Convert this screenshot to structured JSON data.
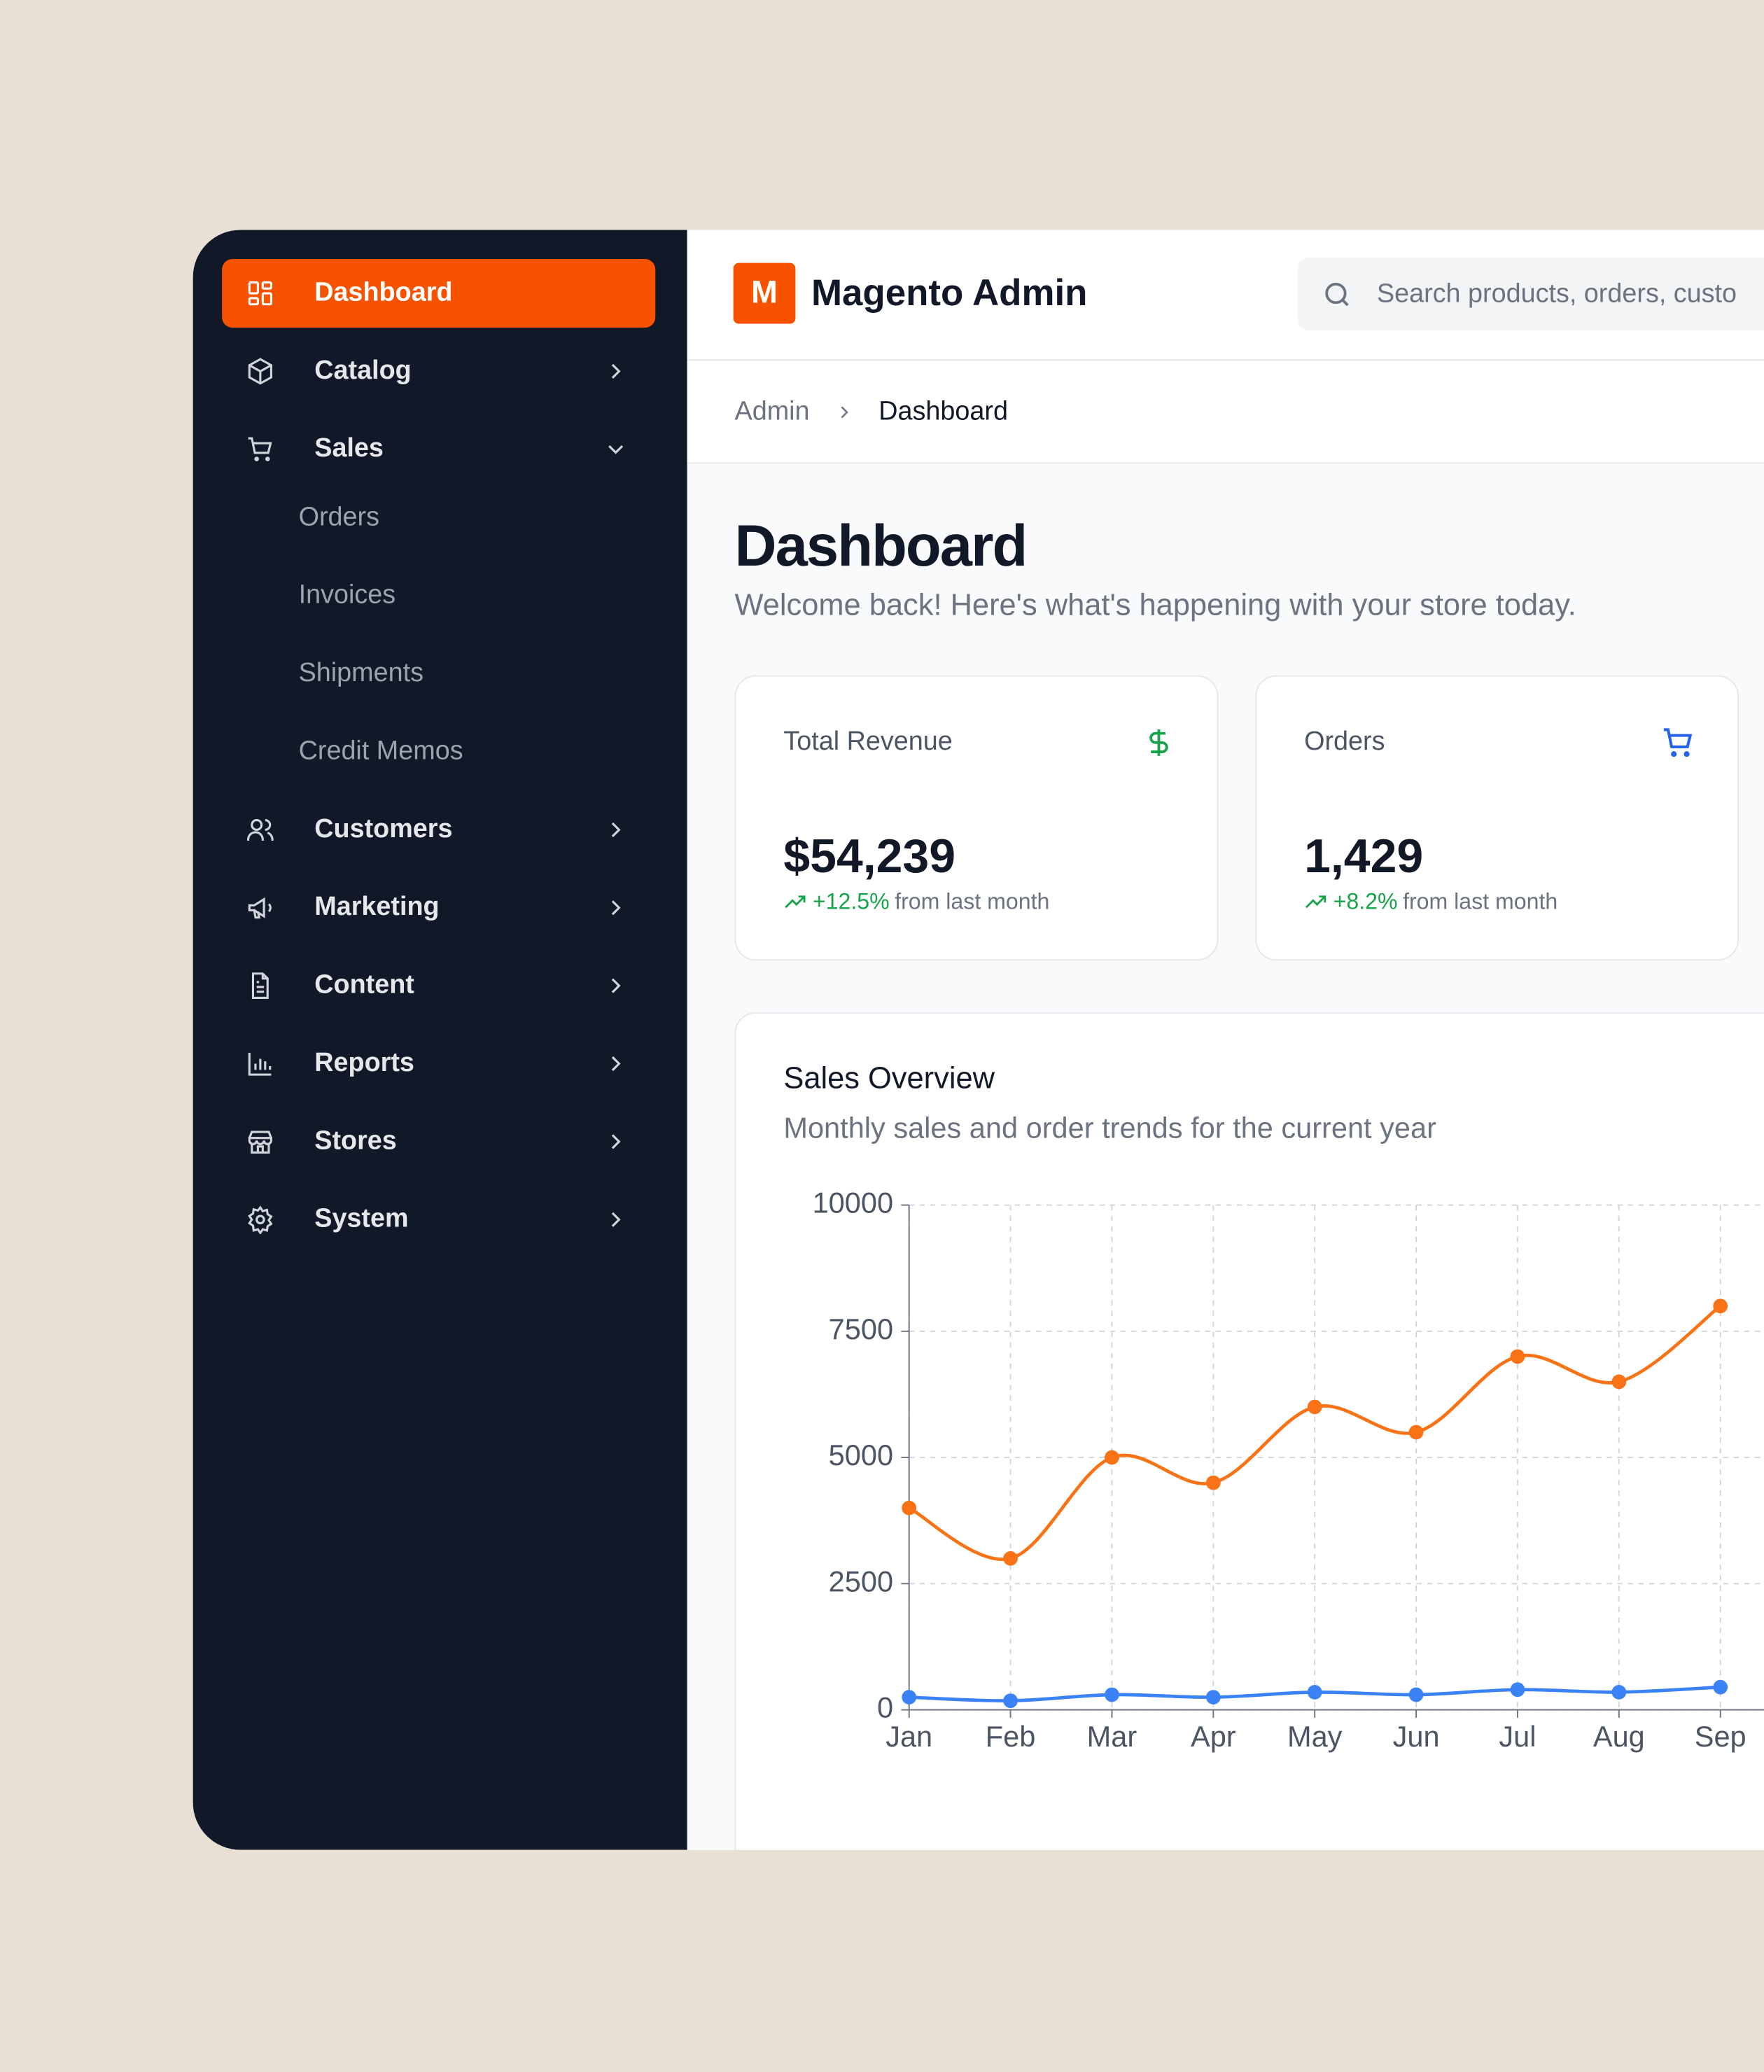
{
  "header": {
    "logo": "M",
    "title": "Magento Admin",
    "search_placeholder": "Search products, orders, custo"
  },
  "sidebar": {
    "items": [
      {
        "label": "Dashboard"
      },
      {
        "label": "Catalog"
      },
      {
        "label": "Sales",
        "children": [
          "Orders",
          "Invoices",
          "Shipments",
          "Credit Memos"
        ]
      },
      {
        "label": "Customers"
      },
      {
        "label": "Marketing"
      },
      {
        "label": "Content"
      },
      {
        "label": "Reports"
      },
      {
        "label": "Stores"
      },
      {
        "label": "System"
      }
    ]
  },
  "breadcrumb": [
    "Admin",
    "Dashboard"
  ],
  "page": {
    "title": "Dashboard",
    "subtitle": "Welcome back! Here's what's happening with your store today."
  },
  "cards": [
    {
      "label": "Total Revenue",
      "value": "$54,239",
      "change": "+12.5%",
      "note": "from last month"
    },
    {
      "label": "Orders",
      "value": "1,429",
      "change": "+8.2%",
      "note": "from last month"
    }
  ],
  "sales_overview": {
    "title": "Sales Overview",
    "subtitle": "Monthly sales and order trends for the current year",
    "chart": {
      "type": "line",
      "categories": [
        "Jan",
        "Feb",
        "Mar",
        "Apr",
        "May",
        "Jun",
        "Jul",
        "Aug",
        "Sep"
      ],
      "series": [
        {
          "color": "#f97316",
          "values": [
            4000,
            3000,
            5000,
            4500,
            6000,
            5500,
            7000,
            6500,
            8000
          ]
        },
        {
          "color": "#3b82f6",
          "values": [
            250,
            180,
            300,
            250,
            350,
            300,
            400,
            350,
            450
          ]
        }
      ],
      "ylim": [
        0,
        10000
      ],
      "yticks": [
        0,
        2500,
        5000,
        7500,
        10000
      ],
      "grid": true
    }
  }
}
